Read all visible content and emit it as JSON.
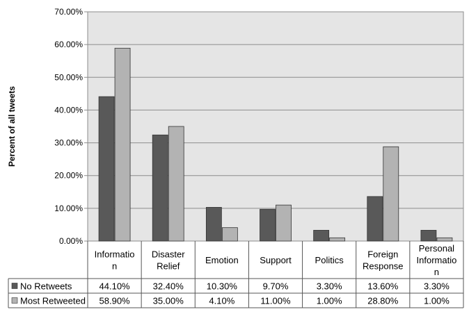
{
  "chart_data": {
    "type": "bar",
    "title": "",
    "ylabel": "Percent of all tweets",
    "xlabel": "",
    "ylim": [
      0,
      70
    ],
    "y_ticks": [
      "0.00%",
      "10.00%",
      "20.00%",
      "30.00%",
      "40.00%",
      "50.00%",
      "60.00%",
      "70.00%"
    ],
    "grid": true,
    "categories": [
      [
        "Informatio",
        "n"
      ],
      [
        "Disaster",
        "Relief"
      ],
      [
        "Emotion"
      ],
      [
        "Support"
      ],
      [
        "Politics"
      ],
      [
        "Foreign",
        "Response"
      ],
      [
        "Personal",
        "Informatio",
        "n"
      ]
    ],
    "series": [
      {
        "name": "No Retweets",
        "color": "#595959",
        "values": [
          44.1,
          32.4,
          10.3,
          9.7,
          3.3,
          13.6,
          3.3
        ],
        "labels": [
          "44.10%",
          "32.40%",
          "10.30%",
          "9.70%",
          "3.30%",
          "13.60%",
          "3.30%"
        ]
      },
      {
        "name": "Most Retweeted",
        "color": "#b3b3b3",
        "values": [
          58.9,
          35.0,
          4.1,
          11.0,
          1.0,
          28.8,
          1.0
        ],
        "labels": [
          "58.90%",
          "35.00%",
          "4.10%",
          "11.00%",
          "1.00%",
          "28.80%",
          "1.00%"
        ]
      }
    ],
    "plot_background": "#e5e5e5",
    "legend": "data-table"
  }
}
